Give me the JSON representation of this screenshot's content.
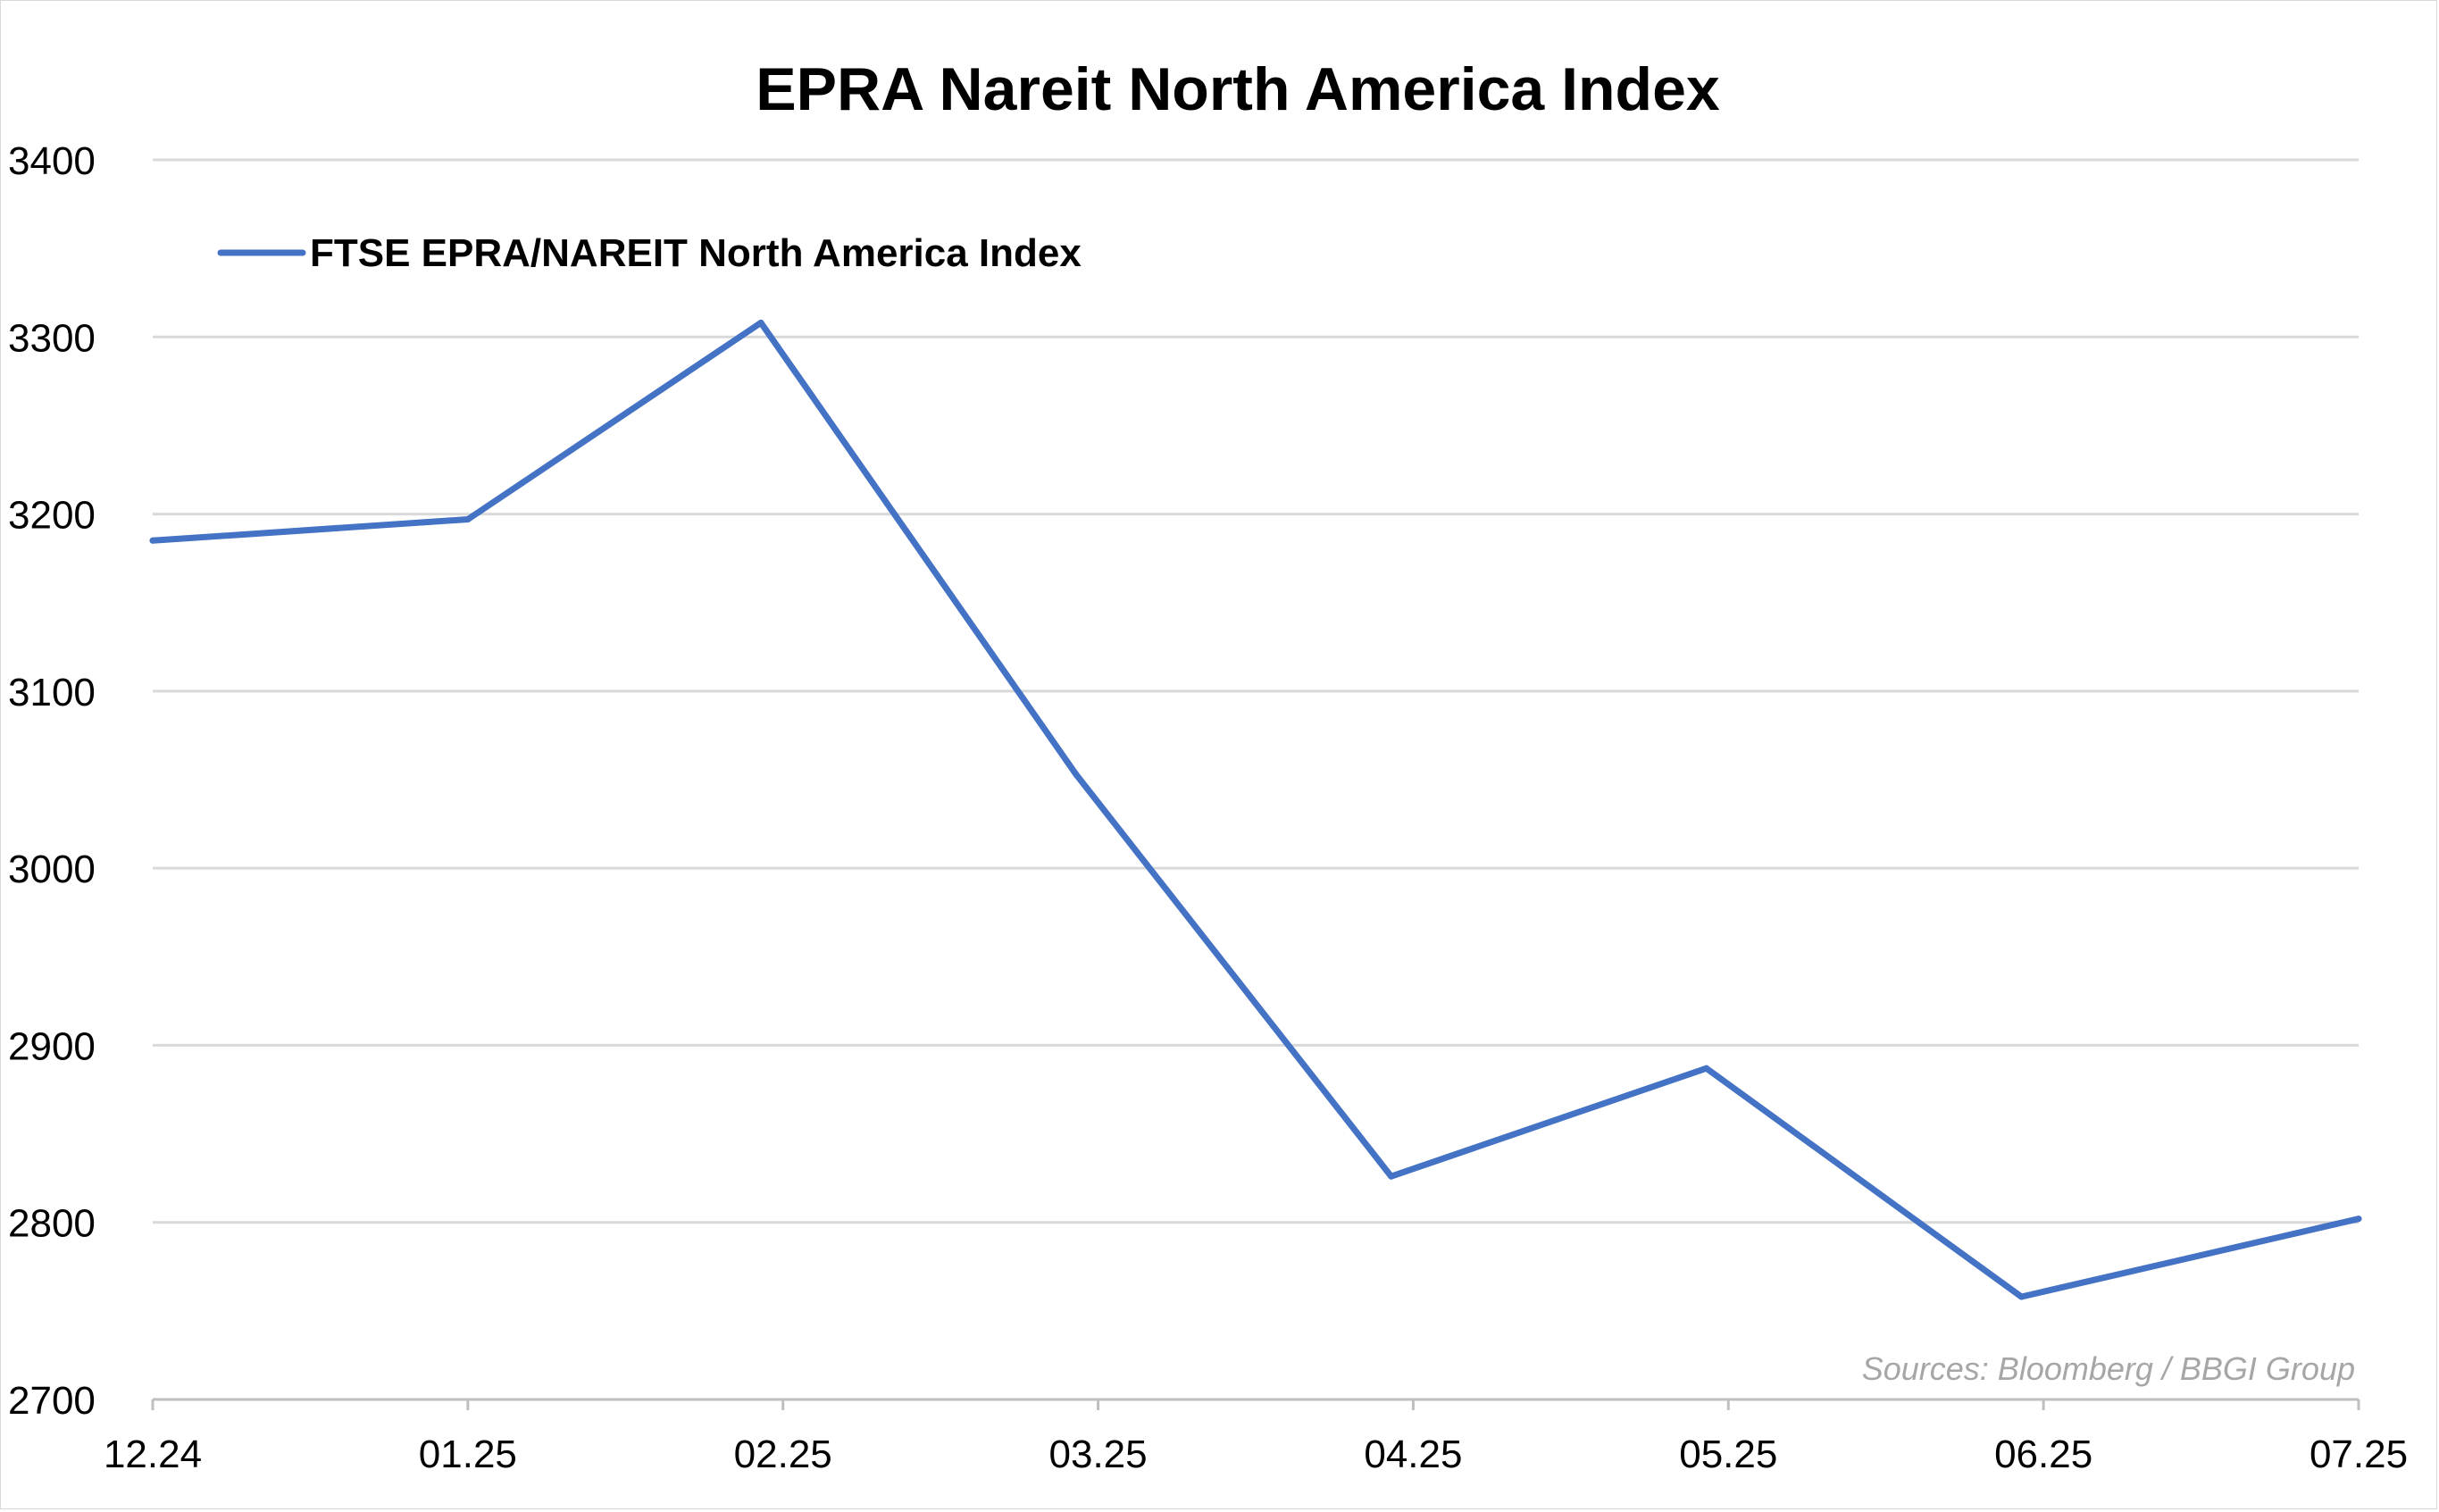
{
  "chart_data": {
    "type": "line",
    "title": "EPRA Nareit North America Index",
    "xlabel": "",
    "ylabel": "",
    "categories": [
      "12.24",
      "01.25",
      "02.25",
      "03.25",
      "04.25",
      "05.25",
      "06.25",
      "07.25"
    ],
    "x_positions": [
      0,
      1,
      2,
      3,
      4,
      5,
      6,
      7
    ],
    "series": [
      {
        "name": "FTSE EPRA/NAREIT North America Index",
        "color": "#4472c4",
        "points": [
          {
            "x": 0.0,
            "y": 3185
          },
          {
            "x": 1.0,
            "y": 3197
          },
          {
            "x": 1.93,
            "y": 3308
          },
          {
            "x": 2.93,
            "y": 3053
          },
          {
            "x": 3.93,
            "y": 2826
          },
          {
            "x": 4.93,
            "y": 2887
          },
          {
            "x": 5.93,
            "y": 2758
          },
          {
            "x": 7.0,
            "y": 2802
          }
        ]
      }
    ],
    "ylim": [
      2700,
      3400
    ],
    "yticks": [
      "2700",
      "2800",
      "2900",
      "3000",
      "3100",
      "3200",
      "3300",
      "3400"
    ],
    "grid": true,
    "legend_position": "top-left",
    "source_note": "Sources: Bloomberg / BBGI Group"
  }
}
